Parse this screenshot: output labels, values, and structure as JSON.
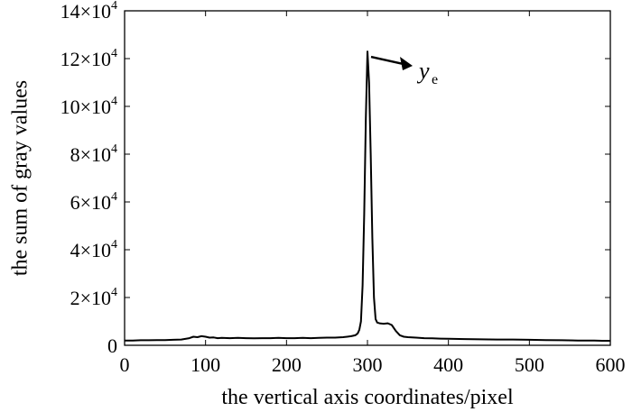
{
  "chart_data": {
    "type": "line",
    "title": "",
    "xlabel": "the vertical axis coordinates/pixel",
    "ylabel": "the sum of gray values",
    "xlim": [
      0,
      600
    ],
    "ylim": [
      0,
      140000
    ],
    "x_ticks": [
      0,
      100,
      200,
      300,
      400,
      500,
      600
    ],
    "x_tick_labels": [
      "0",
      "100",
      "200",
      "300",
      "400",
      "500",
      "600"
    ],
    "y_ticks": [
      {
        "value": 0,
        "mantissa": "0",
        "exponent": ""
      },
      {
        "value": 20000,
        "mantissa": "2×10",
        "exponent": "4"
      },
      {
        "value": 40000,
        "mantissa": "4×10",
        "exponent": "4"
      },
      {
        "value": 60000,
        "mantissa": "6×10",
        "exponent": "4"
      },
      {
        "value": 80000,
        "mantissa": "8×10",
        "exponent": "4"
      },
      {
        "value": 100000,
        "mantissa": "10×10",
        "exponent": "4"
      },
      {
        "value": 120000,
        "mantissa": "12×10",
        "exponent": "4"
      },
      {
        "value": 140000,
        "mantissa": "14×10",
        "exponent": "4"
      }
    ],
    "grid": false,
    "line_color": "#000000",
    "annotation": {
      "text": "y",
      "subscript": "e",
      "at_x": 300,
      "at_y": 123000
    },
    "series": [
      {
        "x": [
          0,
          10,
          20,
          30,
          40,
          50,
          60,
          70,
          80,
          85,
          90,
          95,
          100,
          105,
          110,
          115,
          120,
          130,
          140,
          150,
          160,
          170,
          180,
          190,
          200,
          210,
          220,
          230,
          240,
          250,
          260,
          270,
          275,
          280,
          285,
          288,
          290,
          292,
          294,
          296,
          298,
          300,
          302,
          304,
          306,
          308,
          310,
          312,
          315,
          320,
          325,
          330,
          335,
          340,
          345,
          350,
          360,
          370,
          380,
          390,
          400,
          420,
          440,
          460,
          480,
          500,
          520,
          540,
          560,
          580,
          590,
          600
        ],
        "y": [
          2000,
          2000,
          2100,
          2100,
          2200,
          2200,
          2300,
          2400,
          3000,
          3600,
          3400,
          3800,
          3600,
          3200,
          3300,
          3000,
          3100,
          3000,
          3100,
          3000,
          2900,
          3000,
          3000,
          3100,
          3000,
          3000,
          3100,
          3000,
          3100,
          3200,
          3200,
          3400,
          3600,
          3800,
          4200,
          5000,
          6500,
          10000,
          25000,
          55000,
          95000,
          123000,
          110000,
          80000,
          45000,
          20000,
          11000,
          9500,
          9200,
          9000,
          9200,
          8500,
          6000,
          4200,
          3600,
          3400,
          3200,
          3000,
          2900,
          2800,
          2700,
          2600,
          2500,
          2400,
          2400,
          2300,
          2200,
          2100,
          2000,
          2000,
          1900,
          1900
        ]
      }
    ]
  }
}
